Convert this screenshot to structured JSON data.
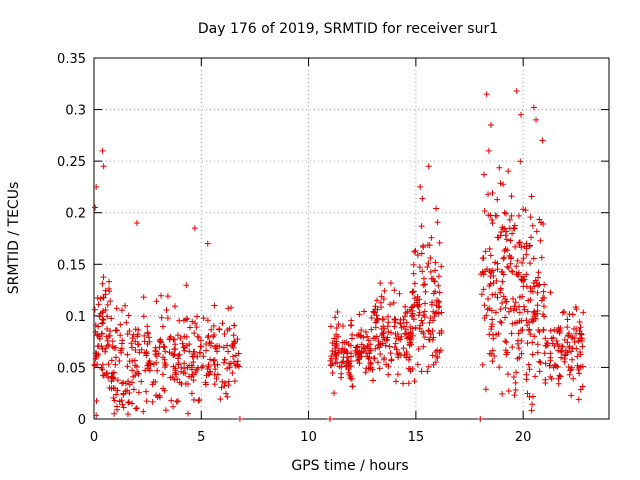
{
  "chart_data": {
    "type": "scatter",
    "title": "Day 176 of 2019, SRMTID for receiver sur1",
    "xlabel": "GPS time / hours",
    "ylabel": "SRMTID / TECUs",
    "xlim": [
      0,
      24
    ],
    "ylim": [
      0,
      0.35
    ],
    "xticks": [
      0,
      5,
      10,
      15,
      20
    ],
    "yticks": [
      0,
      0.05,
      0.1,
      0.15,
      0.2,
      0.25,
      0.3,
      0.35
    ],
    "ytick_labels": [
      "0",
      "0.05",
      "0.1",
      "0.15",
      "0.2",
      "0.25",
      "0.3",
      "0.35"
    ],
    "grid": true,
    "marker": "+",
    "color": "#e00000",
    "series": [
      {
        "name": "SRMTID",
        "segments": [
          {
            "x_range": [
              0.0,
              6.8
            ],
            "clusters": [
              {
                "x": [
                  0.0,
                  0.8
                ],
                "y_mean": 0.085,
                "y_spread": 0.045,
                "count": 70
              },
              {
                "x": [
                  0.8,
                  2.5
                ],
                "y_mean": 0.055,
                "y_spread": 0.04,
                "count": 110
              },
              {
                "x": [
                  2.5,
                  5.0
                ],
                "y_mean": 0.06,
                "y_spread": 0.035,
                "count": 150
              },
              {
                "x": [
                  5.0,
                  6.8
                ],
                "y_mean": 0.065,
                "y_spread": 0.03,
                "count": 90
              }
            ]
          },
          {
            "x_range": [
              11.0,
              16.2
            ],
            "clusters": [
              {
                "x": [
                  11.0,
                  13.0
                ],
                "y_mean": 0.065,
                "y_spread": 0.025,
                "count": 140
              },
              {
                "x": [
                  13.0,
                  14.8
                ],
                "y_mean": 0.08,
                "y_spread": 0.03,
                "count": 130
              },
              {
                "x": [
                  14.8,
                  16.2
                ],
                "y_mean": 0.11,
                "y_spread": 0.05,
                "count": 120
              }
            ]
          },
          {
            "x_range": [
              18.0,
              22.8
            ],
            "clusters": [
              {
                "x": [
                  18.0,
                  19.5
                ],
                "y_mean": 0.14,
                "y_spread": 0.07,
                "count": 130
              },
              {
                "x": [
                  19.5,
                  21.0
                ],
                "y_mean": 0.12,
                "y_spread": 0.07,
                "count": 140
              },
              {
                "x": [
                  21.0,
                  22.8
                ],
                "y_mean": 0.07,
                "y_spread": 0.03,
                "count": 110
              }
            ]
          }
        ],
        "notable_points": [
          {
            "x": 0.4,
            "y": 0.26
          },
          {
            "x": 0.45,
            "y": 0.245
          },
          {
            "x": 0.1,
            "y": 0.225
          },
          {
            "x": 0.05,
            "y": 0.205
          },
          {
            "x": 2.0,
            "y": 0.19
          },
          {
            "x": 4.7,
            "y": 0.185
          },
          {
            "x": 5.3,
            "y": 0.17
          },
          {
            "x": 15.6,
            "y": 0.245
          },
          {
            "x": 15.2,
            "y": 0.225
          },
          {
            "x": 18.3,
            "y": 0.315
          },
          {
            "x": 19.7,
            "y": 0.318
          },
          {
            "x": 20.5,
            "y": 0.302
          },
          {
            "x": 18.5,
            "y": 0.285
          },
          {
            "x": 19.9,
            "y": 0.295
          },
          {
            "x": 20.6,
            "y": 0.29
          },
          {
            "x": 20.9,
            "y": 0.27
          },
          {
            "x": 18.4,
            "y": 0.26
          },
          {
            "x": 11.0,
            "y": 0.0
          },
          {
            "x": 18.0,
            "y": 0.0
          },
          {
            "x": 6.8,
            "y": 0.0
          }
        ]
      }
    ]
  }
}
